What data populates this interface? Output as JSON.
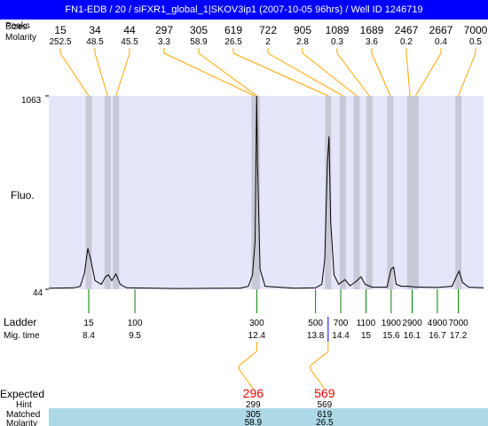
{
  "title": "FN1-EDB / 20 / siFXR1_global_1|SKOV3ip1 (2007-10-05 96hrs) / Well ID 1246719",
  "labels": {
    "peaks_row1": "Peaks",
    "peaks_row2": "Sizes",
    "molarity": "Molarity",
    "fluo": "Fluo.",
    "ladder": "Ladder",
    "mig_time": "Mig. time",
    "expected": "Expected",
    "hint": "Hint",
    "matched": "Matched",
    "molarity_bottom": "Molarity"
  },
  "colors": {
    "plot_bg": "#e6e6fa",
    "band": "#c8c8d6",
    "trace": "#000000",
    "connector": "#ffa500",
    "ladder_tick": "#008000",
    "mig_marker": "#0000ff",
    "expected": "#ff0000",
    "matched_bg": "#add8e6"
  },
  "chart_data": {
    "type": "line",
    "ylabel": "Fluo.",
    "ylim": [
      44,
      1063
    ],
    "y_ticks": [
      "1063",
      "44"
    ],
    "peaks": [
      {
        "size": "15",
        "molarity": "252.5",
        "x": 8.4
      },
      {
        "size": "34",
        "molarity": "48.5",
        "x": 8.85
      },
      {
        "size": "44",
        "molarity": "45.5",
        "x": 9.05
      },
      {
        "size": "297",
        "molarity": "3.3",
        "x": 12.35
      },
      {
        "size": "305",
        "molarity": "58.9",
        "x": 12.4
      },
      {
        "size": "619",
        "molarity": "26.5",
        "x": 14.1
      },
      {
        "size": "722",
        "molarity": "2",
        "x": 14.45
      },
      {
        "size": "905",
        "molarity": "2.8",
        "x": 14.78
      },
      {
        "size": "1089",
        "molarity": "0.3",
        "x": 15.08
      },
      {
        "size": "1689",
        "molarity": "3.6",
        "x": 15.58
      },
      {
        "size": "2467",
        "molarity": "0.2",
        "x": 16.05
      },
      {
        "size": "2667",
        "molarity": "0.4",
        "x": 16.18
      },
      {
        "size": "7000",
        "molarity": "0.5",
        "x": 17.2
      }
    ],
    "ladder": [
      {
        "size": "15",
        "mig_time": "8.4",
        "x": 8.4
      },
      {
        "size": "100",
        "mig_time": "9.5",
        "x": 9.5
      },
      {
        "size": "300",
        "mig_time": "12.4",
        "x": 12.4
      },
      {
        "size": "500",
        "mig_time": "13.8",
        "x": 13.8
      },
      {
        "size": "700",
        "mig_time": "14.4",
        "x": 14.4
      },
      {
        "size": "1100",
        "mig_time": "15",
        "x": 15.0
      },
      {
        "size": "1900",
        "mig_time": "15.6",
        "x": 15.6
      },
      {
        "size": "2900",
        "mig_time": "16.1",
        "x": 16.1
      },
      {
        "size": "4900",
        "mig_time": "16.7",
        "x": 16.7
      },
      {
        "size": "7000",
        "mig_time": "17.2",
        "x": 17.2
      }
    ],
    "mig_marker_x": 14.1,
    "trace": [
      [
        7.45,
        50
      ],
      [
        8.05,
        52
      ],
      [
        8.2,
        60
      ],
      [
        8.3,
        130
      ],
      [
        8.38,
        260
      ],
      [
        8.45,
        200
      ],
      [
        8.55,
        90
      ],
      [
        8.7,
        70
      ],
      [
        8.8,
        110
      ],
      [
        8.87,
        120
      ],
      [
        8.95,
        90
      ],
      [
        9.05,
        125
      ],
      [
        9.15,
        70
      ],
      [
        9.3,
        52
      ],
      [
        10.5,
        48
      ],
      [
        12.0,
        50
      ],
      [
        12.2,
        60
      ],
      [
        12.3,
        120
      ],
      [
        12.36,
        300
      ],
      [
        12.4,
        1063
      ],
      [
        12.42,
        700
      ],
      [
        12.48,
        150
      ],
      [
        12.6,
        60
      ],
      [
        13.3,
        50
      ],
      [
        13.8,
        52
      ],
      [
        13.95,
        70
      ],
      [
        14.02,
        200
      ],
      [
        14.08,
        700
      ],
      [
        14.12,
        850
      ],
      [
        14.16,
        400
      ],
      [
        14.24,
        120
      ],
      [
        14.35,
        70
      ],
      [
        14.5,
        95
      ],
      [
        14.62,
        62
      ],
      [
        14.78,
        88
      ],
      [
        14.88,
        110
      ],
      [
        14.98,
        70
      ],
      [
        15.15,
        55
      ],
      [
        15.5,
        55
      ],
      [
        15.6,
        150
      ],
      [
        15.66,
        160
      ],
      [
        15.72,
        70
      ],
      [
        15.85,
        60
      ],
      [
        16.0,
        60
      ],
      [
        16.15,
        57
      ],
      [
        16.4,
        55
      ],
      [
        16.7,
        54
      ],
      [
        17.05,
        60
      ],
      [
        17.15,
        110
      ],
      [
        17.22,
        140
      ],
      [
        17.3,
        80
      ],
      [
        17.45,
        55
      ],
      [
        17.8,
        52
      ]
    ],
    "expected": [
      {
        "expected": "296",
        "hint": "299",
        "matched": "305",
        "molarity": "58.9",
        "x": 12.4
      },
      {
        "expected": "569",
        "hint": "569",
        "matched": "619",
        "molarity": "26.5",
        "x": 14.1
      }
    ]
  }
}
